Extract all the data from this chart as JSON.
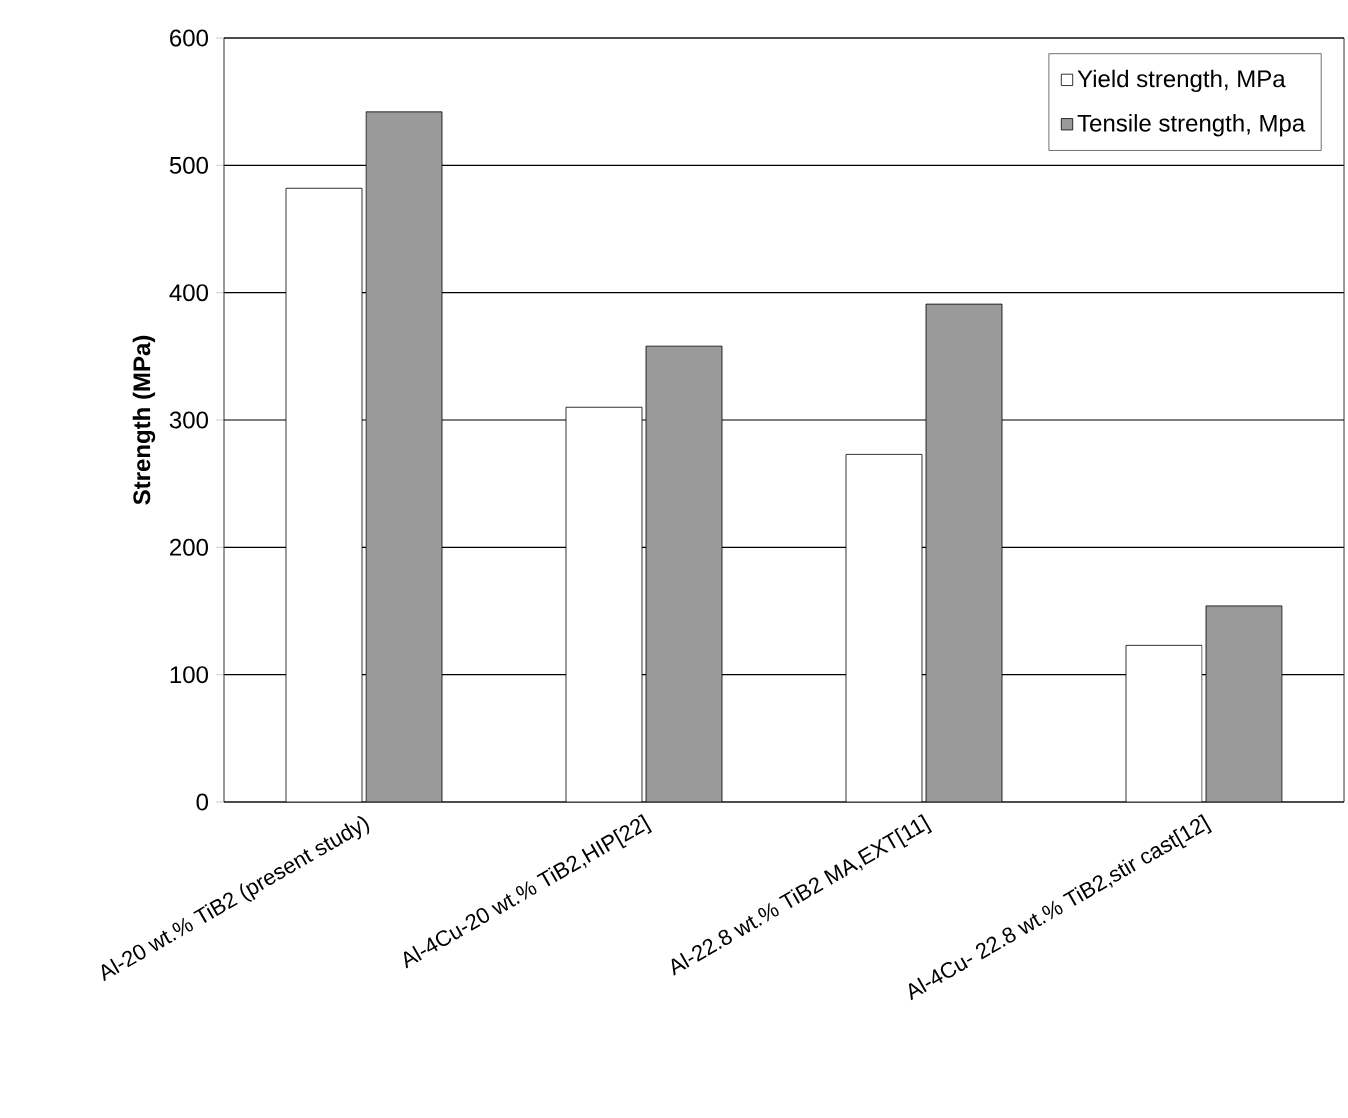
{
  "chart_data": {
    "type": "bar",
    "ylabel": "Strength (MPa)",
    "categories": [
      "Al-20 wt.% TiB2 (present study)",
      "Al-4Cu-20 wt.% TiB2,HIP[22]",
      "Al-22.8 wt.% TiB2 MA,EXT[11]",
      "Al-4Cu- 22.8 wt.% TiB2,stir cast[12]"
    ],
    "series": [
      {
        "name": "Yield strength, MPa",
        "color": "#ffffff",
        "values": [
          482,
          310,
          273,
          123
        ]
      },
      {
        "name": "Tensile strength, Mpa",
        "color": "#9a9a9a",
        "values": [
          542,
          358,
          391,
          154
        ]
      }
    ],
    "ylim": [
      0,
      600
    ],
    "yticks": [
      0,
      100,
      200,
      300,
      400,
      500,
      600
    ],
    "grid": "y",
    "legend": "top right"
  }
}
